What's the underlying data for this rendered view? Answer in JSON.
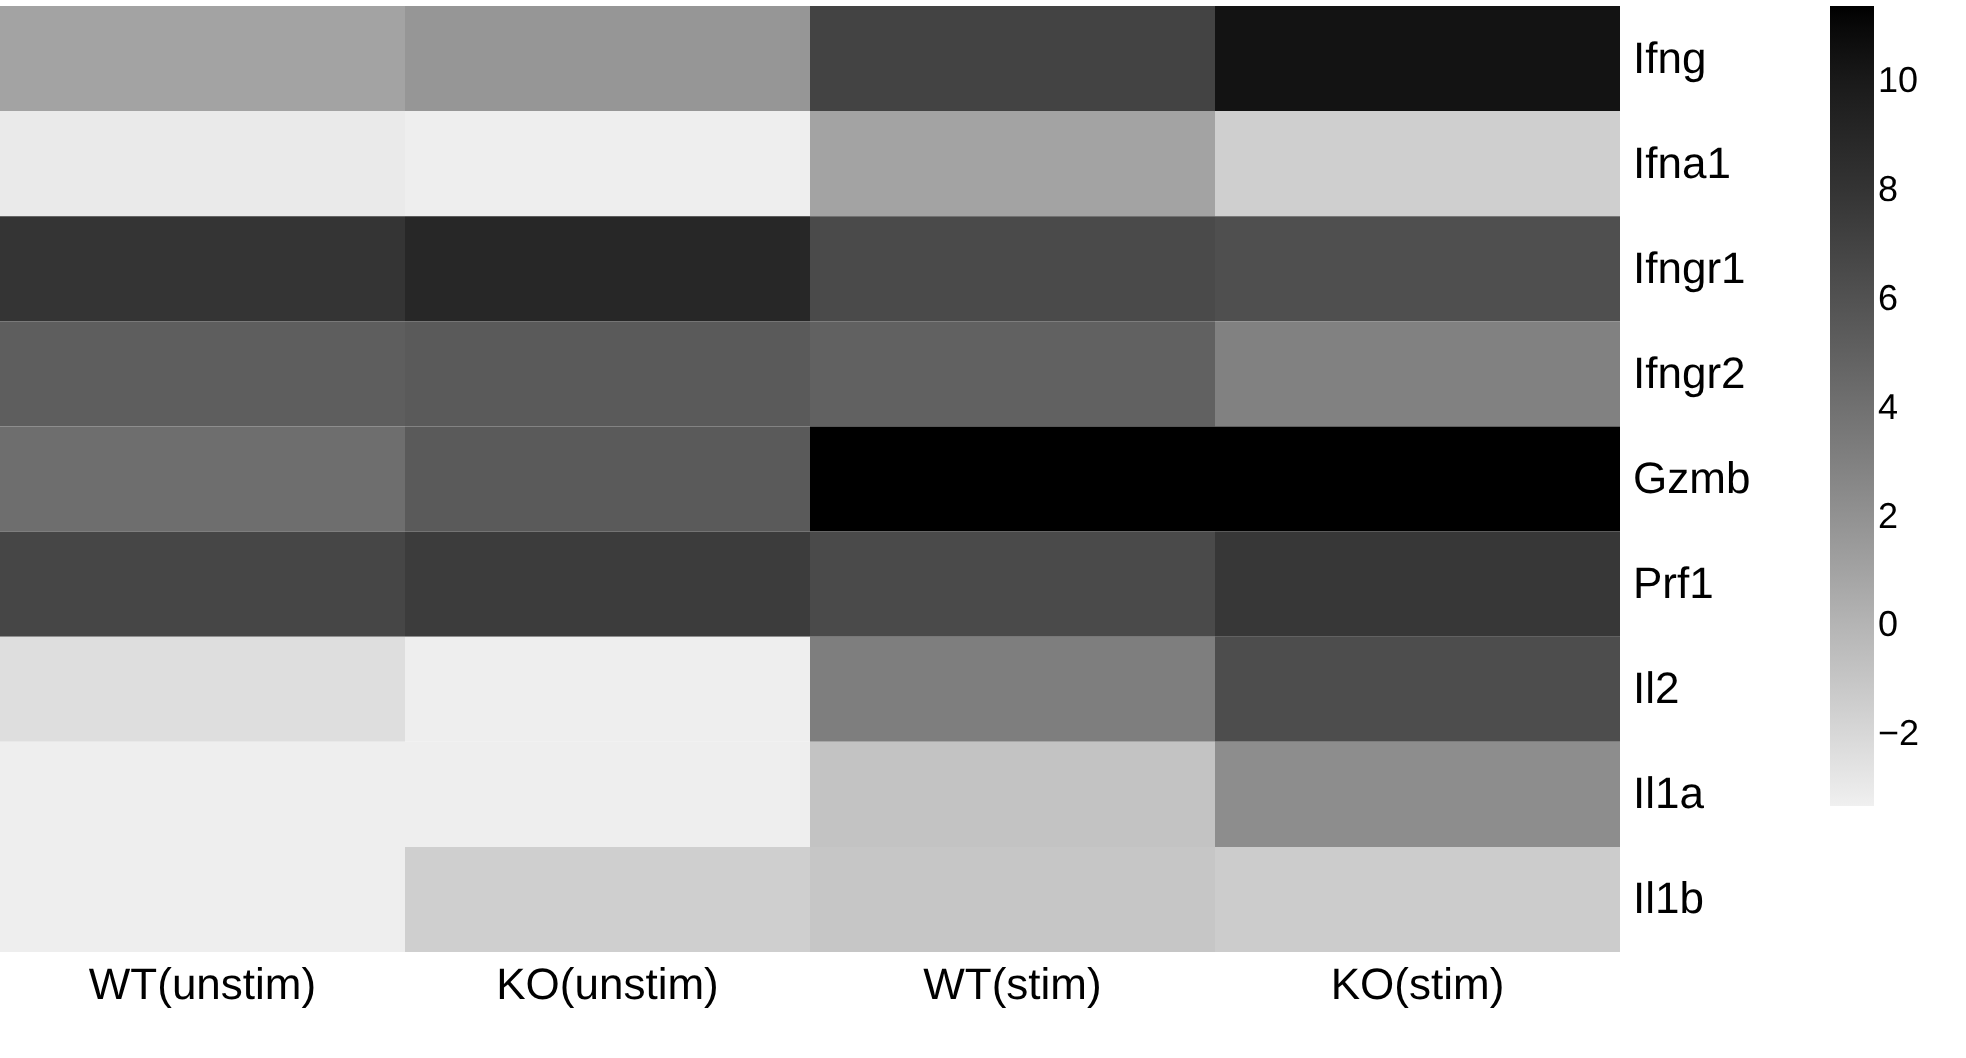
{
  "chart_data": {
    "type": "heatmap",
    "categories": [
      "WT(unstim)",
      "KO(unstim)",
      "WT(stim)",
      "KO(stim)"
    ],
    "y_categories": [
      "Ifng",
      "Ifna1",
      "Ifngr1",
      "Ifngr2",
      "Gzmb",
      "Prf1",
      "Il2",
      "Il1a",
      "Il1b"
    ],
    "cells": [
      [
        1.0,
        1.8,
        7.0,
        10.5
      ],
      [
        -3.0,
        -3.2,
        1.0,
        -1.5
      ],
      [
        8.0,
        9.0,
        6.5,
        6.2
      ],
      [
        5.2,
        5.5,
        5.0,
        3.0
      ],
      [
        4.2,
        5.5,
        11.4,
        11.4
      ],
      [
        6.8,
        7.5,
        6.5,
        7.8
      ],
      [
        -2.3,
        -3.2,
        3.2,
        6.3
      ],
      [
        -3.2,
        -3.2,
        -0.8,
        2.3
      ],
      [
        -3.2,
        -1.5,
        -1.0,
        -1.3
      ]
    ],
    "clim": [
      -3.3,
      11.4
    ],
    "cticks": [
      -2,
      0,
      2,
      4,
      6,
      8,
      10
    ]
  }
}
